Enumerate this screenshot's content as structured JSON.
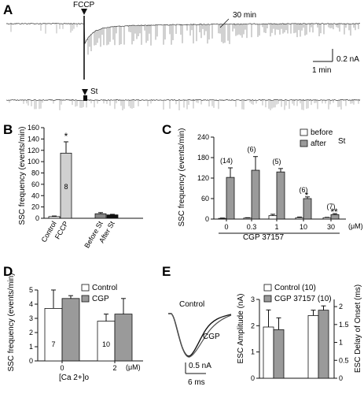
{
  "panels": {
    "A": {
      "label": "A",
      "fccp_label": "FCCP",
      "st_label": "St",
      "time_label": "30 min",
      "scale_current": "0.2 nA",
      "scale_time": "1 min"
    },
    "E": {
      "label": "E",
      "trace_control": "Control",
      "trace_cgp": "CGP",
      "scale_current": "0.5 nA",
      "scale_time": "6 ms"
    }
  },
  "chart_data": [
    {
      "id": "B",
      "panel_label": "B",
      "type": "bar",
      "categories": [
        "Control",
        "FCCP",
        "Before St",
        "After St"
      ],
      "values": [
        3,
        115,
        8,
        6
      ],
      "errors": [
        1,
        20,
        2,
        1
      ],
      "colors": [
        "#ffffff",
        "#d0d0d0",
        "#888888",
        "#111111"
      ],
      "ylabel": "SSC frequency (events/min)",
      "ylim": [
        0,
        160
      ],
      "yticks": [
        0,
        20,
        40,
        60,
        80,
        100,
        120,
        140,
        160
      ],
      "annotations": [
        {
          "text": "*",
          "category": "FCCP"
        },
        {
          "text": "8",
          "category": "FCCP"
        }
      ]
    },
    {
      "id": "C",
      "panel_label": "C",
      "type": "bar",
      "categories": [
        "0",
        "0.3",
        "1",
        "10",
        "30"
      ],
      "unit": "(μM)",
      "xlabel": "CGP 37157",
      "ylabel": "SSC frequency (events/min)",
      "ylim": [
        0,
        240
      ],
      "yticks": [
        0,
        60,
        120,
        180,
        240
      ],
      "legend_title": "St",
      "legend_position": "top-right",
      "series": [
        {
          "name": "before",
          "color": "#ffffff",
          "values": [
            2,
            3,
            10,
            4,
            4
          ],
          "errors": [
            1,
            1,
            4,
            2,
            1
          ]
        },
        {
          "name": "after",
          "color": "#9a9a9a",
          "values": [
            122,
            143,
            138,
            60,
            13
          ],
          "errors": [
            28,
            40,
            10,
            5,
            3
          ]
        }
      ],
      "n_labels": [
        "(14)",
        "(6)",
        "(5)",
        "(6)",
        "(7)"
      ],
      "sig_labels": [
        "",
        "",
        "",
        "*",
        "**"
      ]
    },
    {
      "id": "D",
      "panel_label": "D",
      "type": "bar",
      "categories": [
        "0",
        "2"
      ],
      "unit": "(μM)",
      "xlabel": "[Ca 2+]o",
      "ylabel": "SSC frequency (events/min)",
      "ylim": [
        0,
        5
      ],
      "yticks": [
        0,
        1,
        2,
        3,
        4,
        5
      ],
      "legend_position": "top-right",
      "series": [
        {
          "name": "Control",
          "color": "#ffffff",
          "values": [
            3.7,
            2.8
          ],
          "errors": [
            1.3,
            0.5
          ]
        },
        {
          "name": "CGP",
          "color": "#9a9a9a",
          "values": [
            4.4,
            3.3
          ],
          "errors": [
            0.2,
            1.1
          ]
        }
      ],
      "n_labels": [
        "7",
        "10"
      ]
    },
    {
      "id": "E",
      "panel_label": "",
      "type": "bar",
      "categories": [
        "ESC Amplitude",
        "ESC Delay of Onset"
      ],
      "legend_position": "top-left",
      "series": [
        {
          "name": "Control (10)",
          "color": "#ffffff",
          "values": [
            1.95,
            1.75
          ],
          "errors": [
            0.65,
            0.15
          ]
        },
        {
          "name": "CGP 37157 (10)",
          "color": "#9a9a9a",
          "values": [
            1.85,
            1.9
          ],
          "errors": [
            0.45,
            0.12
          ]
        }
      ],
      "left_axis": {
        "label": "ESC Amplitude (nA)",
        "ylim": [
          0,
          3
        ],
        "yticks": [
          0,
          1,
          2,
          3
        ]
      },
      "right_axis": {
        "label": "ESC Delay of Onset (ms)",
        "ylim": [
          0,
          2.2
        ],
        "yticks": [
          0,
          0.5,
          1,
          1.5,
          2
        ]
      }
    }
  ]
}
